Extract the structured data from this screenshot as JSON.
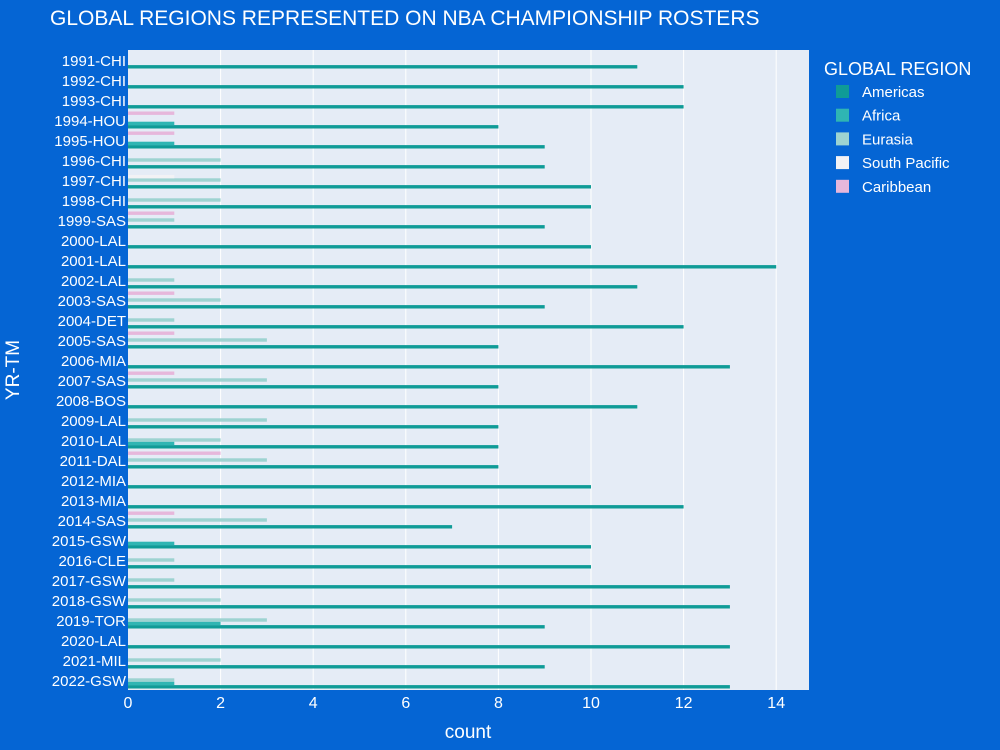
{
  "chart_data": {
    "type": "bar",
    "orientation": "horizontal",
    "title": "GLOBAL REGIONS REPRESENTED ON NBA CHAMPIONSHIP ROSTERS",
    "xlabel": "count",
    "ylabel": "YR-TM",
    "xlim": [
      0,
      14.7
    ],
    "xticks": [
      0,
      2,
      4,
      6,
      8,
      10,
      12,
      14
    ],
    "grid": true,
    "legend_title": "GLOBAL REGION",
    "legend_position": "top-right",
    "categories": [
      "1991-CHI",
      "1992-CHI",
      "1993-CHI",
      "1994-HOU",
      "1995-HOU",
      "1996-CHI",
      "1997-CHI",
      "1998-CHI",
      "1999-SAS",
      "2000-LAL",
      "2001-LAL",
      "2002-LAL",
      "2003-SAS",
      "2004-DET",
      "2005-SAS",
      "2006-MIA",
      "2007-SAS",
      "2008-BOS",
      "2009-LAL",
      "2010-LAL",
      "2011-DAL",
      "2012-MIA",
      "2013-MIA",
      "2014-SAS",
      "2015-GSW",
      "2016-CLE",
      "2017-GSW",
      "2018-GSW",
      "2019-TOR",
      "2020-LAL",
      "2021-MIL",
      "2022-GSW"
    ],
    "series": [
      {
        "name": "Americas",
        "color": "#0f9b97",
        "values": [
          11,
          12,
          12,
          8,
          9,
          9,
          10,
          10,
          9,
          10,
          14,
          11,
          9,
          12,
          8,
          13,
          8,
          11,
          8,
          8,
          8,
          10,
          12,
          7,
          10,
          10,
          13,
          13,
          9,
          13,
          9,
          13
        ]
      },
      {
        "name": "Africa",
        "color": "#2fb5b3",
        "values": [
          0,
          0,
          0,
          1,
          1,
          0,
          0,
          0,
          0,
          0,
          0,
          0,
          0,
          0,
          0,
          0,
          0,
          0,
          0,
          1,
          0,
          0,
          0,
          0,
          1,
          0,
          0,
          0,
          2,
          0,
          0,
          1
        ]
      },
      {
        "name": "Eurasia",
        "color": "#9dd3d1",
        "values": [
          0,
          0,
          0,
          0,
          0,
          2,
          2,
          2,
          1,
          0,
          0,
          1,
          2,
          1,
          3,
          0,
          3,
          0,
          3,
          2,
          3,
          0,
          0,
          3,
          0,
          1,
          1,
          2,
          3,
          0,
          2,
          1
        ]
      },
      {
        "name": "South Pacific",
        "color": "#f2f2f5",
        "values": [
          0,
          0,
          0,
          0,
          0,
          0,
          1,
          0,
          0,
          0,
          0,
          0,
          0,
          0,
          0,
          0,
          0,
          0,
          0,
          0,
          0,
          0,
          0,
          0,
          0,
          0,
          0,
          0,
          0,
          0,
          0,
          0
        ]
      },
      {
        "name": "Caribbean",
        "color": "#e6b7db",
        "values": [
          0,
          0,
          0,
          1,
          1,
          0,
          0,
          0,
          1,
          0,
          0,
          0,
          1,
          0,
          1,
          0,
          1,
          0,
          0,
          0,
          2,
          0,
          0,
          1,
          0,
          0,
          0,
          0,
          0,
          0,
          0,
          0
        ]
      }
    ]
  }
}
